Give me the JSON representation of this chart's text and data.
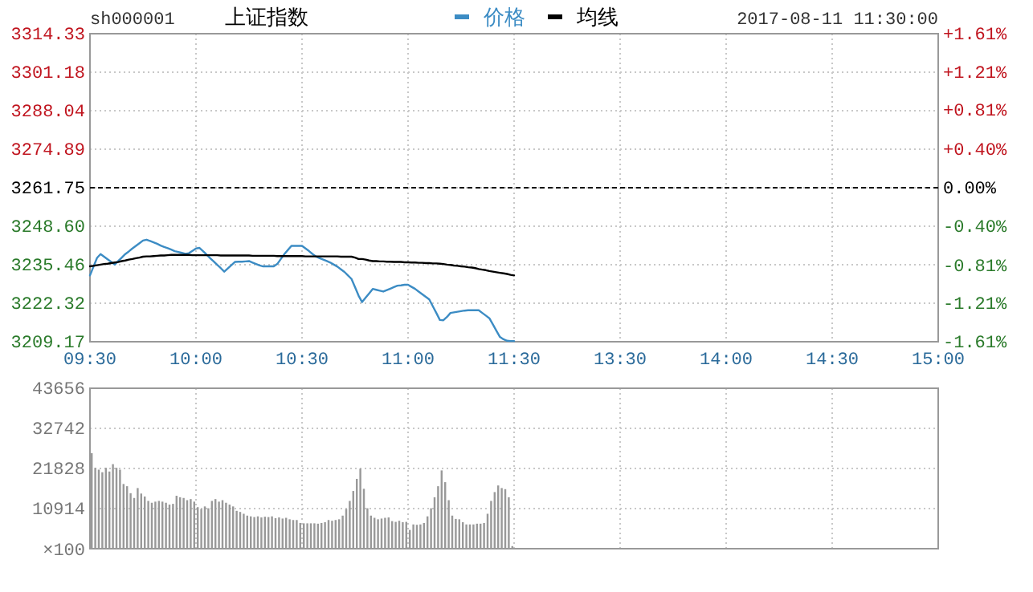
{
  "chart_data": [
    {
      "type": "line",
      "title": "上证指数",
      "annotations": [
        "sh000001",
        "2017-08-11 11:30:00"
      ],
      "categories": [
        "09:30",
        null,
        null,
        null,
        null,
        null,
        null,
        null,
        null,
        null,
        null,
        null,
        null,
        null,
        null,
        null,
        null,
        null,
        null,
        null,
        null,
        null,
        null,
        null,
        null,
        null,
        null,
        null,
        null,
        null,
        "10:00",
        null,
        null,
        null,
        null,
        null,
        null,
        null,
        null,
        null,
        null,
        null,
        null,
        null,
        null,
        null,
        null,
        null,
        null,
        null,
        null,
        null,
        null,
        null,
        null,
        null,
        null,
        null,
        null,
        null,
        "10:30",
        null,
        null,
        null,
        null,
        null,
        null,
        null,
        null,
        null,
        null,
        null,
        null,
        null,
        null,
        null,
        null,
        null,
        null,
        null,
        null,
        null,
        null,
        null,
        null,
        null,
        null,
        null,
        null,
        null,
        "11:00",
        null,
        null,
        null,
        null,
        null,
        null,
        null,
        null,
        null,
        null,
        null,
        null,
        null,
        null,
        null,
        null,
        null,
        null,
        null,
        null,
        null,
        null,
        null,
        null,
        null,
        null,
        null,
        null,
        null,
        "11:30",
        null,
        null,
        null,
        null,
        null,
        null,
        null,
        null,
        null,
        null,
        null,
        null,
        null,
        null,
        null,
        null,
        null,
        null,
        null,
        null,
        null,
        null,
        null,
        null,
        null,
        null,
        null,
        null,
        null,
        "13:30",
        null,
        null,
        null,
        null,
        null,
        null,
        null,
        null,
        null,
        null,
        null,
        null,
        null,
        null,
        null,
        null,
        null,
        null,
        null,
        null,
        null,
        null,
        null,
        null,
        null,
        null,
        null,
        null,
        null,
        "14:00",
        null,
        null,
        null,
        null,
        null,
        null,
        null,
        null,
        null,
        null,
        null,
        null,
        null,
        null,
        null,
        null,
        null,
        null,
        null,
        null,
        null,
        null,
        null,
        null,
        null,
        null,
        null,
        null,
        null,
        "14:30",
        null,
        null,
        null,
        null,
        null,
        null,
        null,
        null,
        null,
        null,
        null,
        null,
        null,
        null,
        null,
        null,
        null,
        null,
        null,
        null,
        null,
        null,
        null,
        null,
        null,
        null,
        null,
        null,
        null,
        "15:00"
      ],
      "series": [
        {
          "name": "价格",
          "color": "#3c8cc4",
          "values": [
            3231.8,
            3234.8,
            3237.8,
            3239.1,
            3238.2,
            3237.3,
            3236.4,
            3235.5,
            3236.7,
            3237.9,
            3239.1,
            3240.0,
            3241.0,
            3241.9,
            3242.8,
            3243.7,
            3244.0,
            3243.6,
            3243.1,
            3242.6,
            3242.0,
            3241.5,
            3241.1,
            3240.6,
            3240.1,
            3239.8,
            3239.5,
            3239.2,
            3239.4,
            3240.2,
            3241.0,
            3241.2,
            3240.1,
            3238.9,
            3237.7,
            3236.6,
            3235.4,
            3234.3,
            3233.1,
            3234.2,
            3235.3,
            3236.4,
            3236.5,
            3236.5,
            3236.6,
            3236.7,
            3236.2,
            3235.7,
            3235.2,
            3234.9,
            3234.9,
            3234.9,
            3234.9,
            3235.7,
            3237.4,
            3239.1,
            3240.5,
            3241.9,
            3241.9,
            3241.9,
            3241.9,
            3241.0,
            3240.1,
            3239.1,
            3238.2,
            3237.7,
            3237.2,
            3236.7,
            3236.2,
            3235.5,
            3234.8,
            3233.9,
            3233.0,
            3231.8,
            3230.6,
            3227.8,
            3224.9,
            3222.7,
            3224.2,
            3225.7,
            3227.2,
            3226.9,
            3226.6,
            3226.3,
            3226.8,
            3227.3,
            3227.8,
            3228.3,
            3228.4,
            3228.6,
            3228.6,
            3227.9,
            3227.2,
            3226.3,
            3225.4,
            3224.5,
            3223.6,
            3221.3,
            3219.0,
            3216.6,
            3216.5,
            3217.6,
            3219.0,
            3219.2,
            3219.4,
            3219.6,
            3219.8,
            3219.9,
            3219.9,
            3219.9,
            3219.9,
            3219.0,
            3218.1,
            3217.2,
            3215.1,
            3212.9,
            3210.8,
            3210.0,
            3209.5,
            3209.4,
            3209.4,
            null,
            null,
            null,
            null,
            null,
            null,
            null,
            null,
            null,
            null,
            null,
            null,
            null,
            null,
            null,
            null,
            null,
            null,
            null,
            null,
            null,
            null,
            null,
            null,
            null,
            null,
            null,
            null,
            null,
            null,
            null,
            null,
            null,
            null,
            null,
            null,
            null,
            null,
            null,
            null,
            null,
            null,
            null,
            null,
            null,
            null,
            null,
            null,
            null,
            null,
            null,
            null,
            null,
            null,
            null,
            null,
            null,
            null,
            null,
            null,
            null,
            null,
            null,
            null,
            null,
            null,
            null,
            null,
            null,
            null,
            null,
            null,
            null,
            null,
            null,
            null,
            null,
            null,
            null,
            null,
            null,
            null,
            null,
            null,
            null,
            null,
            null,
            null,
            null,
            null,
            null,
            null,
            null,
            null,
            null,
            null,
            null,
            null,
            null,
            null,
            null,
            null,
            null,
            null,
            null,
            null,
            null,
            null,
            null,
            null,
            null,
            null,
            null,
            null,
            null,
            null,
            null,
            null,
            null,
            null
          ]
        },
        {
          "name": "均线",
          "color": "#000000",
          "values": [
            3234.9,
            3235.1,
            3235.3,
            3235.5,
            3235.7,
            3235.8,
            3236.0,
            3236.2,
            3236.4,
            3236.7,
            3236.9,
            3237.2,
            3237.4,
            3237.7,
            3237.9,
            3238.2,
            3238.3,
            3238.3,
            3238.4,
            3238.5,
            3238.6,
            3238.6,
            3238.7,
            3238.8,
            3238.8,
            3238.8,
            3238.8,
            3238.8,
            3238.8,
            3238.7,
            3238.7,
            3238.7,
            3238.7,
            3238.7,
            3238.7,
            3238.7,
            3238.7,
            3238.6,
            3238.6,
            3238.6,
            3238.6,
            3238.6,
            3238.6,
            3238.6,
            3238.6,
            3238.6,
            3238.5,
            3238.5,
            3238.5,
            3238.5,
            3238.5,
            3238.5,
            3238.5,
            3238.4,
            3238.4,
            3238.4,
            3238.4,
            3238.4,
            3238.4,
            3238.4,
            3238.4,
            3238.3,
            3238.3,
            3238.3,
            3238.3,
            3238.3,
            3238.3,
            3238.3,
            3238.3,
            3238.3,
            3238.3,
            3238.2,
            3238.2,
            3238.2,
            3238.2,
            3237.9,
            3237.4,
            3237.4,
            3237.2,
            3236.9,
            3236.7,
            3236.7,
            3236.6,
            3236.6,
            3236.5,
            3236.5,
            3236.4,
            3236.4,
            3236.4,
            3236.3,
            3236.3,
            3236.2,
            3236.2,
            3236.1,
            3236.1,
            3236.0,
            3236.0,
            3235.9,
            3235.9,
            3235.8,
            3235.7,
            3235.5,
            3235.4,
            3235.2,
            3235.1,
            3234.9,
            3234.8,
            3234.6,
            3234.5,
            3234.3,
            3234.0,
            3233.8,
            3233.6,
            3233.3,
            3233.1,
            3232.9,
            3232.7,
            3232.5,
            3232.3,
            3232.0,
            3231.8,
            null,
            null,
            null,
            null,
            null,
            null,
            null,
            null,
            null,
            null,
            null,
            null,
            null,
            null,
            null,
            null,
            null,
            null,
            null,
            null,
            null,
            null,
            null,
            null,
            null,
            null,
            null,
            null,
            null,
            null,
            null,
            null,
            null,
            null,
            null,
            null,
            null,
            null,
            null,
            null,
            null,
            null,
            null,
            null,
            null,
            null,
            null,
            null,
            null,
            null,
            null,
            null,
            null,
            null,
            null,
            null,
            null,
            null,
            null,
            null,
            null,
            null,
            null,
            null,
            null,
            null,
            null,
            null,
            null,
            null,
            null,
            null,
            null,
            null,
            null,
            null,
            null,
            null,
            null,
            null,
            null,
            null,
            null,
            null,
            null,
            null,
            null,
            null,
            null,
            null,
            null,
            null,
            null,
            null,
            null,
            null,
            null,
            null,
            null,
            null,
            null,
            null,
            null,
            null,
            null,
            null,
            null,
            null,
            null,
            null,
            null,
            null,
            null,
            null,
            null,
            null,
            null,
            null,
            null,
            null
          ]
        }
      ],
      "ylim": [
        3209.17,
        3314.33
      ],
      "yticks": [
        3209.17,
        3222.32,
        3235.46,
        {
          "value": 3248.6,
          "label": "3248.60"
        },
        3261.75,
        3274.89,
        3288.04,
        3301.18,
        3314.33
      ],
      "y2lim": [
        -1.61,
        1.61
      ],
      "y2ticks": [
        {
          "value": -1.61,
          "label": "-1.61%"
        },
        {
          "value": -1.21,
          "label": "-1.21%"
        },
        {
          "value": -0.81,
          "label": "-0.81%"
        },
        {
          "value": -0.4,
          "label": "-0.40%"
        },
        {
          "value": 0,
          "label": "0.00%"
        },
        {
          "value": 0.4,
          "label": "+0.40%"
        },
        {
          "value": 0.81,
          "label": "+0.81%"
        },
        {
          "value": 1.21,
          "label": "+1.21%"
        },
        {
          "value": 1.61,
          "label": "+1.61%"
        }
      ],
      "ref_lines": [
        {
          "axis": "y",
          "value": 3261.75,
          "color": "#000000",
          "line_style": "dashed"
        }
      ],
      "grid": true,
      "legend": "top"
    },
    {
      "type": "bar",
      "color": "#999999",
      "ylabel": "×100",
      "categories": [
        null,
        null,
        null,
        null,
        null,
        null,
        null,
        null,
        null,
        null,
        null,
        null,
        null,
        null,
        null,
        null,
        null,
        null,
        null,
        null,
        null,
        null,
        null,
        null,
        null,
        null,
        null,
        null,
        null,
        null,
        null,
        null,
        null,
        null,
        null,
        null,
        null,
        null,
        null,
        null,
        null,
        null,
        null,
        null,
        null,
        null,
        null,
        null,
        null,
        null,
        null,
        null,
        null,
        null,
        null,
        null,
        null,
        null,
        null,
        null,
        null,
        null,
        null,
        null,
        null,
        null,
        null,
        null,
        null,
        null,
        null,
        null,
        null,
        null,
        null,
        null,
        null,
        null,
        null,
        null,
        null,
        null,
        null,
        null,
        null,
        null,
        null,
        null,
        null,
        null,
        null,
        null,
        null,
        null,
        null,
        null,
        null,
        null,
        null,
        null,
        null,
        null,
        null,
        null,
        null,
        null,
        null,
        null,
        null,
        null,
        null,
        null,
        null,
        null,
        null,
        null,
        null,
        null,
        null,
        null,
        null,
        null,
        null,
        null,
        null,
        null,
        null,
        null,
        null,
        null,
        null,
        null,
        null,
        null,
        null,
        null,
        null,
        null,
        null,
        null,
        null,
        null,
        null,
        null,
        null,
        null,
        null,
        null,
        null,
        null,
        null,
        null,
        null,
        null,
        null,
        null,
        null,
        null,
        null,
        null,
        null,
        null,
        null,
        null,
        null,
        null,
        null,
        null,
        null,
        null,
        null,
        null,
        null,
        null,
        null,
        null,
        null,
        null,
        null,
        null,
        null,
        null,
        null,
        null,
        null,
        null,
        null,
        null,
        null,
        null,
        null,
        null,
        null,
        null,
        null,
        null,
        null,
        null,
        null,
        null,
        null,
        null,
        null,
        null,
        null,
        null,
        null,
        null,
        null,
        null,
        null,
        null,
        null,
        null,
        null,
        null,
        null,
        null,
        null,
        null,
        null,
        null,
        null,
        null,
        null,
        null,
        null,
        null,
        null,
        null,
        null,
        null,
        null,
        null,
        null,
        null,
        null,
        null,
        null,
        null,
        null
      ],
      "values": [
        26000,
        22000,
        21500,
        20800,
        22000,
        21000,
        23000,
        22000,
        21500,
        17600,
        17000,
        15100,
        13800,
        16500,
        15000,
        14200,
        13000,
        12500,
        12800,
        13000,
        12800,
        12500,
        12000,
        12200,
        14400,
        14000,
        13800,
        13200,
        13500,
        12800,
        11300,
        10800,
        11500,
        11000,
        13000,
        13500,
        12800,
        13200,
        12500,
        12000,
        11500,
        10300,
        10000,
        9500,
        9000,
        8800,
        8600,
        8800,
        8500,
        8700,
        8600,
        8800,
        8300,
        8500,
        8200,
        8400,
        8000,
        7800,
        7800,
        7000,
        6900,
        6900,
        6900,
        6900,
        6800,
        7000,
        7200,
        7800,
        7600,
        7800,
        8000,
        9000,
        10800,
        13000,
        15700,
        19000,
        21800,
        16300,
        11000,
        9000,
        8400,
        8000,
        8200,
        8400,
        8500,
        7500,
        7300,
        7600,
        7200,
        7300,
        5100,
        6600,
        6500,
        6600,
        7000,
        8800,
        11000,
        14000,
        17000,
        21300,
        18100,
        13200,
        9000,
        8100,
        8000,
        7200,
        6600,
        6600,
        6600,
        6800,
        6800,
        7000,
        9500,
        13000,
        15400,
        17200,
        16500,
        16200,
        14000,
        700,
        null,
        null,
        null,
        null,
        null,
        null,
        null,
        null,
        null,
        null,
        null,
        null,
        null,
        null,
        null,
        null,
        null,
        null,
        null,
        null,
        null,
        null,
        null,
        null,
        null,
        null,
        null,
        null,
        null,
        null,
        null,
        null,
        null,
        null,
        null,
        null,
        null,
        null,
        null,
        null,
        null,
        null,
        null,
        null,
        null,
        null,
        null,
        null,
        null,
        null,
        null,
        null,
        null,
        null,
        null,
        null,
        null,
        null,
        null,
        null,
        null,
        null,
        null,
        null,
        null,
        null,
        null,
        null,
        null,
        null,
        null,
        null,
        null,
        null,
        null,
        null,
        null,
        null,
        null,
        null,
        null,
        null,
        null,
        null,
        null,
        null,
        null,
        null,
        null,
        null,
        null,
        null,
        null,
        null,
        null,
        null,
        null,
        null,
        null,
        null,
        null,
        null,
        null,
        null,
        null,
        null,
        null,
        null,
        null,
        null,
        null,
        null,
        null,
        null,
        null,
        null,
        null,
        null,
        null,
        null,
        null
      ],
      "ylim": [
        0,
        43656
      ],
      "yticks": [
        10914,
        21828,
        32742,
        43656
      ],
      "grid": true,
      "tick_labels": "y"
    }
  ]
}
